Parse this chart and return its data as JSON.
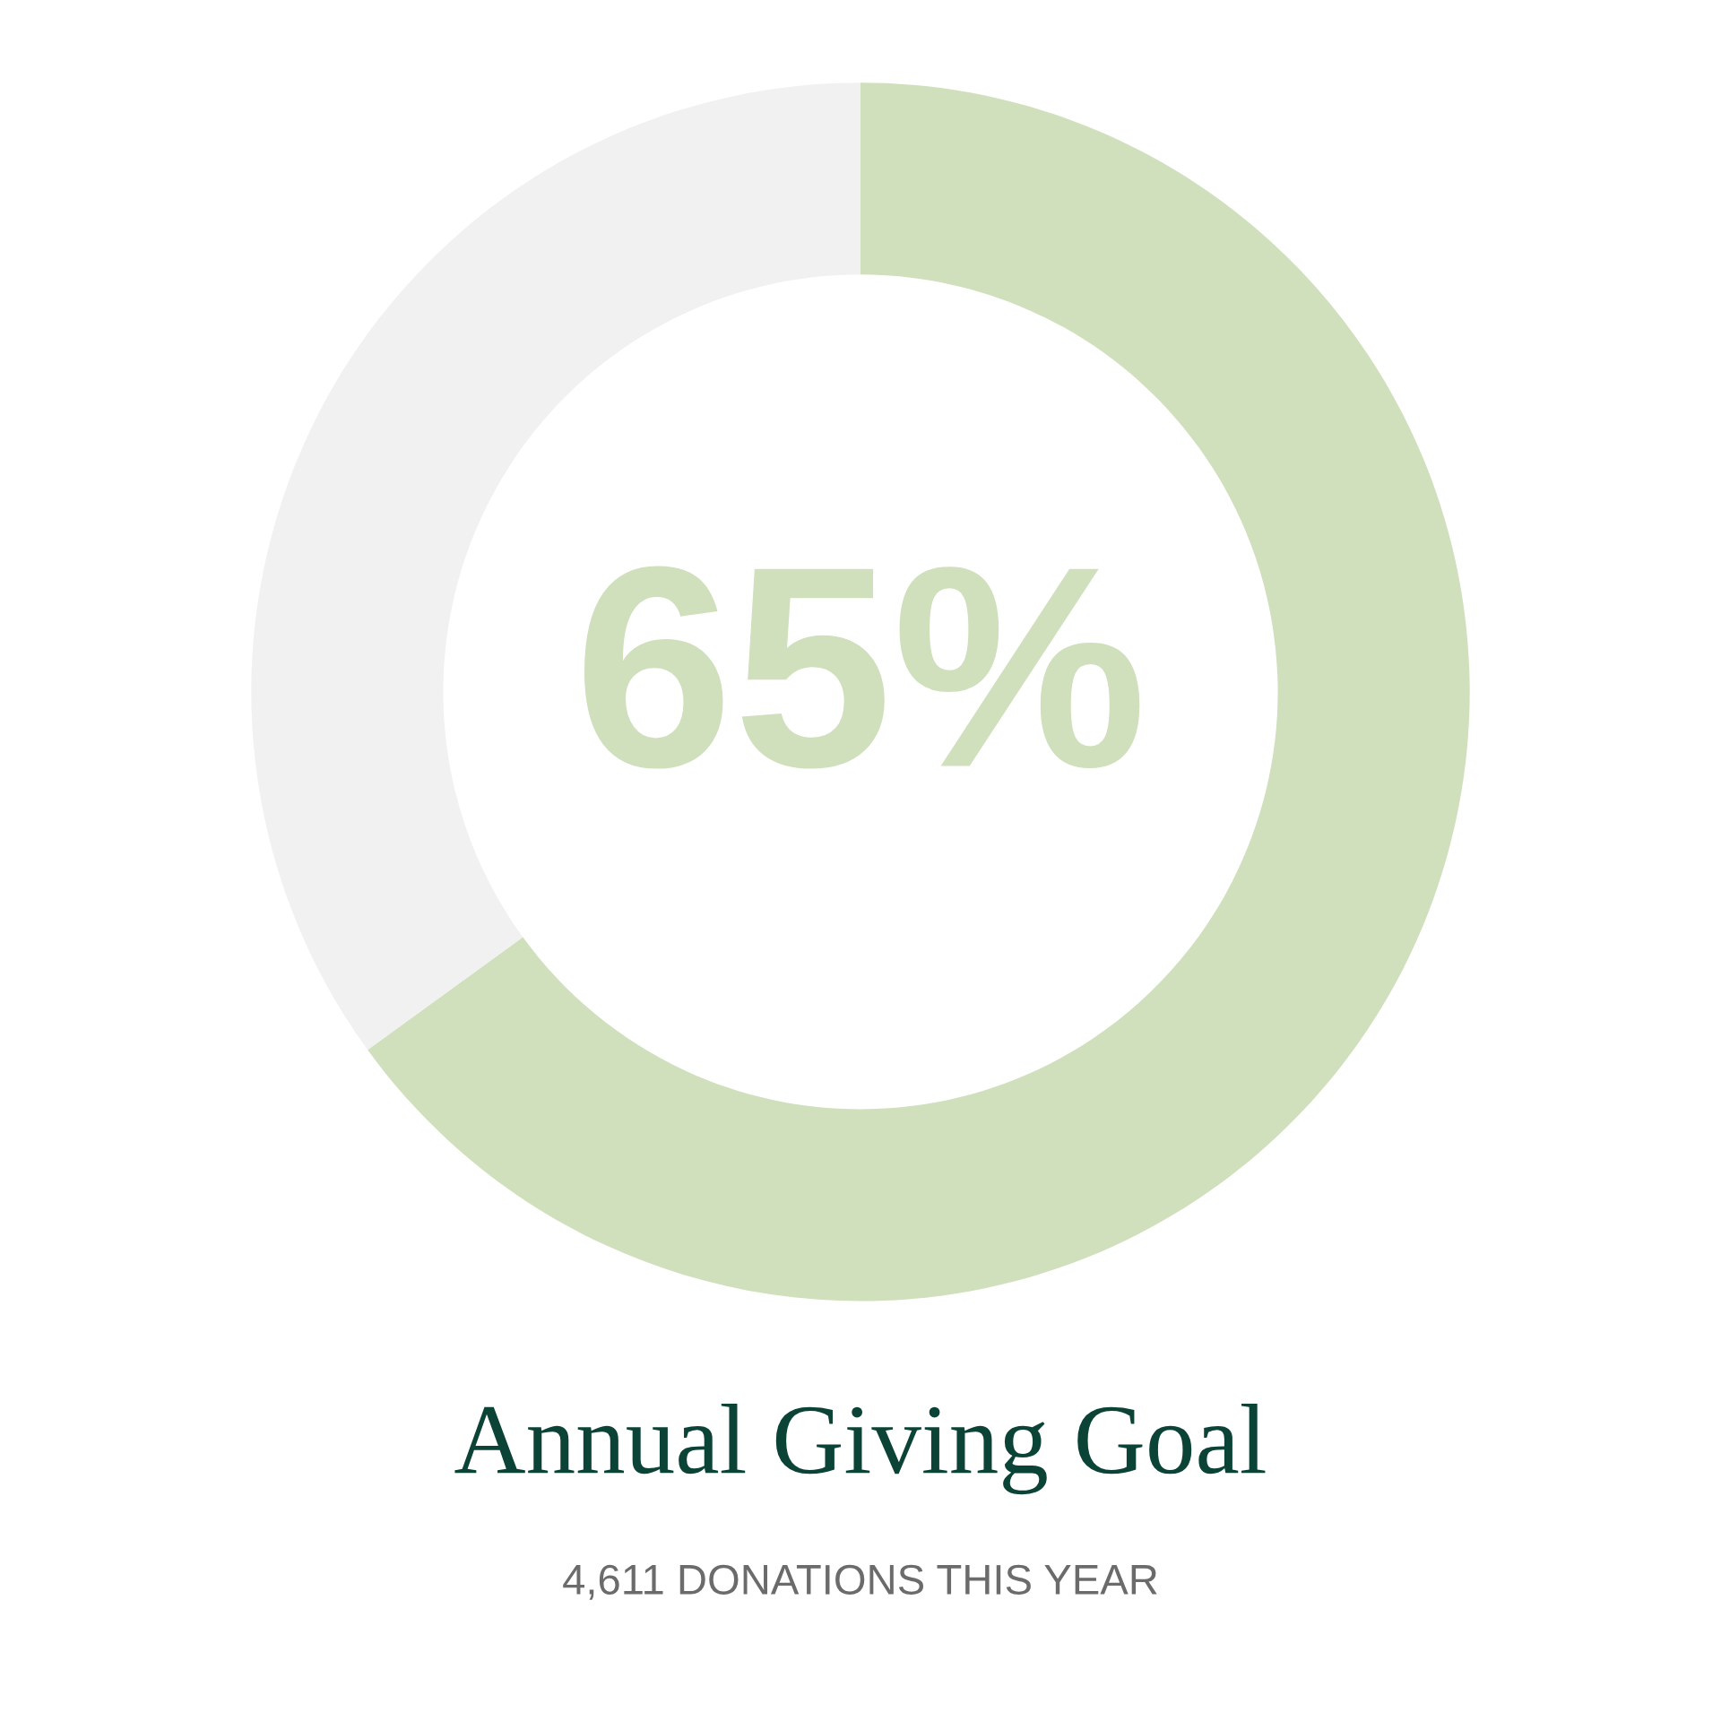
{
  "chart_data": {
    "type": "donut",
    "title": "Annual Giving Goal",
    "subtitle": "4,611 DONATIONS THIS YEAR",
    "categories": [
      null,
      null
    ],
    "values": [
      65,
      35
    ],
    "colors": [
      "#d0dfbc",
      "#f1f1f1"
    ],
    "annotations": [
      "65%"
    ]
  }
}
